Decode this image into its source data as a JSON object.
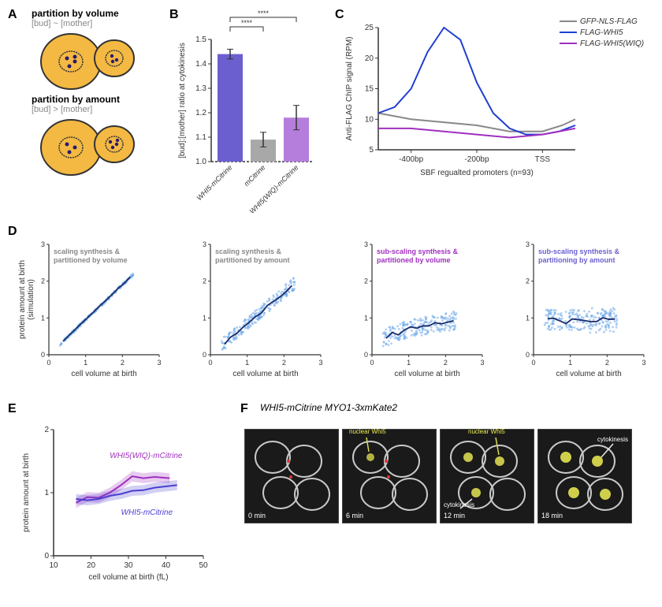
{
  "panelA": {
    "title1": "partition by volume",
    "sub1": "[bud] ~ [mother]",
    "title2": "partition by amount",
    "sub2": "[bud] > [mother]"
  },
  "panelB": {
    "ylabel": "[bud]:[mother] ratio at cytokinesis",
    "categories": [
      "WHI5-mCitrine",
      "mCitrine",
      "WHI5(WIQ)-mCitrine"
    ],
    "values": [
      1.44,
      1.09,
      1.18
    ],
    "errors": [
      0.02,
      0.03,
      0.05
    ],
    "colors": [
      "#6b5fcf",
      "#a8a8a8",
      "#b57edc"
    ],
    "ylim": [
      1.0,
      1.5
    ],
    "sig": "****",
    "axis_color": "#333333"
  },
  "panelC": {
    "ylabel": "Anti-FLAG ChIP signal (RPM)",
    "xlabel": "SBF regualted promoters (n=93)",
    "xticks": [
      "-400bp",
      "-200bp",
      "TSS"
    ],
    "yticks": [
      5,
      10,
      15,
      20,
      25
    ],
    "legend": [
      "GFP-NLS-FLAG",
      "FLAG-WHI5",
      "FLAG-WHI5(WIQ)"
    ],
    "colors": [
      "#888888",
      "#1f3fd1",
      "#a030c0"
    ]
  },
  "panelD": {
    "ylabel": "protein amount at birth\n(simulation)",
    "xlabel": "cell volume at birth",
    "titles": [
      "scaling synthesis & partitioned by volume",
      "scaling synthesis & partitioned by amount",
      "sub-scaling synthesis & partitioned by volume",
      "sub-scaling synthesis & partitioning by amount"
    ],
    "title_colors": [
      "#888888",
      "#888888",
      "#a030c0",
      "#6b5fcf"
    ],
    "xlim": [
      0,
      3
    ],
    "ylim": [
      0,
      3
    ],
    "point_color": "#6ba8e8",
    "line_color": "#1a2b6b"
  },
  "panelE": {
    "ylabel": "protein amount at birth",
    "xlabel": "cell volume at birth (fL)",
    "xticks": [
      10,
      20,
      30,
      40,
      50
    ],
    "yticks": [
      0,
      1,
      2
    ],
    "series": [
      "WHI5(WIQ)-mCitrine",
      "WHI5-mCitrine"
    ],
    "colors": [
      "#a030c0",
      "#4b3fd1"
    ]
  },
  "panelF": {
    "title": "WHI5-mCitrine MYO1-3xmKate2",
    "times": [
      "0 min",
      "6 min",
      "12 min",
      "18 min"
    ],
    "labels": {
      "nuclear": "nuclear Whi5",
      "cytokinesis": "cytokinesis"
    }
  }
}
